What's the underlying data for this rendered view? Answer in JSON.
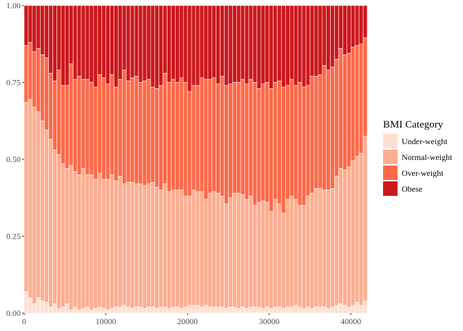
{
  "chart_data": {
    "type": "bar",
    "stacked": "fill",
    "title": "",
    "xlabel": "",
    "ylabel": "",
    "x_range": [
      0,
      42000
    ],
    "ylim": [
      0,
      1
    ],
    "x_ticks": [
      0,
      10000,
      20000,
      30000,
      40000
    ],
    "x_tick_labels": [
      "0",
      "10000",
      "20000",
      "30000",
      "40000"
    ],
    "y_ticks": [
      0,
      0.25,
      0.5,
      0.75,
      1
    ],
    "y_tick_labels": [
      "0.00",
      "0.25",
      "0.50",
      "0.75",
      "1.00"
    ],
    "grid": false,
    "legend_title": "BMI Category",
    "legend_position": "right",
    "x": [
      250,
      750,
      1250,
      1750,
      2250,
      2750,
      3250,
      3750,
      4250,
      4750,
      5250,
      5750,
      6250,
      6750,
      7250,
      7750,
      8250,
      8750,
      9250,
      9750,
      10250,
      10750,
      11250,
      11750,
      12250,
      12750,
      13250,
      13750,
      14250,
      14750,
      15250,
      15750,
      16250,
      16750,
      17250,
      17750,
      18250,
      18750,
      19250,
      19750,
      20250,
      20750,
      21250,
      21750,
      22250,
      22750,
      23250,
      23750,
      24250,
      24750,
      25250,
      25750,
      26250,
      26750,
      27250,
      27750,
      28250,
      28750,
      29250,
      29750,
      30250,
      30750,
      31250,
      31750,
      32250,
      32750,
      33250,
      33750,
      34250,
      34750,
      35250,
      35750,
      36250,
      36750,
      37250,
      37750,
      38250,
      38750,
      39250,
      39750,
      40250,
      40750,
      41250,
      41750
    ],
    "series": [
      {
        "name": "Under-weight",
        "color": "#fee0d2",
        "values": [
          0.07,
          0.05,
          0.03,
          0.05,
          0.04,
          0.035,
          0.02,
          0.03,
          0.015,
          0.02,
          0.03,
          0.01,
          0.02,
          0.01,
          0.015,
          0.02,
          0.01,
          0.015,
          0.02,
          0.015,
          0.01,
          0.015,
          0.02,
          0.02,
          0.025,
          0.02,
          0.015,
          0.02,
          0.02,
          0.015,
          0.02,
          0.02,
          0.015,
          0.02,
          0.02,
          0.015,
          0.02,
          0.02,
          0.015,
          0.02,
          0.025,
          0.025,
          0.025,
          0.02,
          0.025,
          0.02,
          0.02,
          0.02,
          0.02,
          0.015,
          0.02,
          0.02,
          0.015,
          0.02,
          0.015,
          0.02,
          0.02,
          0.02,
          0.015,
          0.02,
          0.015,
          0.02,
          0.02,
          0.015,
          0.02,
          0.02,
          0.025,
          0.02,
          0.015,
          0.02,
          0.015,
          0.02,
          0.02,
          0.02,
          0.015,
          0.02,
          0.025,
          0.03,
          0.025,
          0.02,
          0.025,
          0.035,
          0.025,
          0.04
        ]
      },
      {
        "name": "Normal-weight",
        "color": "#fcae91",
        "values": [
          0.615,
          0.645,
          0.64,
          0.605,
          0.585,
          0.56,
          0.545,
          0.5,
          0.5,
          0.465,
          0.44,
          0.47,
          0.44,
          0.44,
          0.455,
          0.43,
          0.44,
          0.42,
          0.435,
          0.42,
          0.425,
          0.435,
          0.41,
          0.425,
          0.395,
          0.405,
          0.41,
          0.4,
          0.4,
          0.4,
          0.4,
          0.405,
          0.395,
          0.38,
          0.4,
          0.38,
          0.38,
          0.38,
          0.385,
          0.36,
          0.355,
          0.375,
          0.37,
          0.375,
          0.345,
          0.37,
          0.375,
          0.37,
          0.36,
          0.34,
          0.355,
          0.37,
          0.375,
          0.365,
          0.355,
          0.36,
          0.33,
          0.34,
          0.35,
          0.34,
          0.315,
          0.35,
          0.335,
          0.31,
          0.35,
          0.36,
          0.345,
          0.33,
          0.335,
          0.36,
          0.375,
          0.385,
          0.385,
          0.38,
          0.385,
          0.385,
          0.42,
          0.44,
          0.44,
          0.455,
          0.47,
          0.475,
          0.495,
          0.535
        ]
      },
      {
        "name": "Over-weight",
        "color": "#fb6a4a",
        "values": [
          0.185,
          0.185,
          0.18,
          0.205,
          0.215,
          0.235,
          0.215,
          0.225,
          0.275,
          0.255,
          0.27,
          0.33,
          0.3,
          0.32,
          0.29,
          0.31,
          0.3,
          0.3,
          0.32,
          0.33,
          0.31,
          0.325,
          0.305,
          0.315,
          0.37,
          0.33,
          0.34,
          0.35,
          0.33,
          0.34,
          0.34,
          0.31,
          0.32,
          0.34,
          0.36,
          0.355,
          0.36,
          0.35,
          0.365,
          0.37,
          0.34,
          0.34,
          0.345,
          0.37,
          0.39,
          0.37,
          0.37,
          0.355,
          0.39,
          0.385,
          0.37,
          0.36,
          0.36,
          0.375,
          0.375,
          0.38,
          0.4,
          0.37,
          0.38,
          0.39,
          0.4,
          0.38,
          0.4,
          0.41,
          0.37,
          0.38,
          0.37,
          0.4,
          0.385,
          0.36,
          0.38,
          0.365,
          0.37,
          0.405,
          0.39,
          0.395,
          0.38,
          0.39,
          0.375,
          0.37,
          0.37,
          0.36,
          0.355,
          0.32
        ]
      },
      {
        "name": "Obese",
        "color": "#cb181d",
        "values": [
          0.13,
          0.12,
          0.15,
          0.14,
          0.16,
          0.17,
          0.22,
          0.245,
          0.21,
          0.26,
          0.26,
          0.19,
          0.24,
          0.23,
          0.24,
          0.24,
          0.25,
          0.265,
          0.225,
          0.235,
          0.255,
          0.225,
          0.265,
          0.24,
          0.21,
          0.245,
          0.235,
          0.23,
          0.25,
          0.245,
          0.24,
          0.265,
          0.27,
          0.26,
          0.22,
          0.25,
          0.24,
          0.25,
          0.235,
          0.25,
          0.28,
          0.26,
          0.26,
          0.235,
          0.24,
          0.24,
          0.235,
          0.255,
          0.23,
          0.26,
          0.255,
          0.25,
          0.25,
          0.24,
          0.255,
          0.24,
          0.25,
          0.27,
          0.255,
          0.25,
          0.27,
          0.25,
          0.245,
          0.265,
          0.26,
          0.24,
          0.26,
          0.25,
          0.265,
          0.26,
          0.23,
          0.23,
          0.225,
          0.195,
          0.21,
          0.2,
          0.175,
          0.14,
          0.16,
          0.155,
          0.135,
          0.13,
          0.125,
          0.105
        ]
      }
    ]
  }
}
